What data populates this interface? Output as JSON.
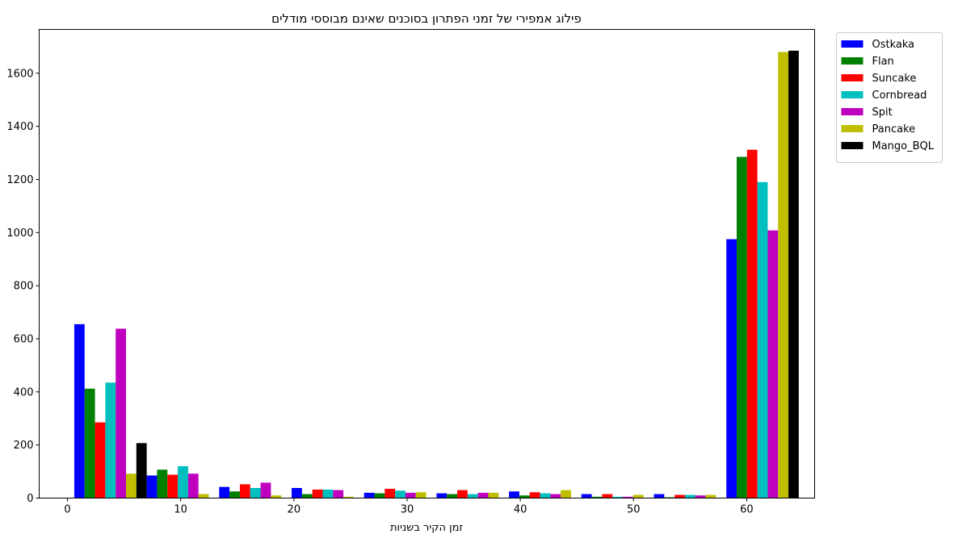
{
  "chart_data": {
    "type": "bar",
    "title": "פילוג אמפירי של זמני הפתרון בסוכנים שאינם מבוססי מודלים",
    "xlabel": "זמן הקיר בשניות",
    "ylabel": "",
    "xlim": [
      -2.5,
      66
    ],
    "ylim": [
      0,
      1765
    ],
    "x_ticks": [
      0,
      10,
      20,
      30,
      40,
      50,
      60
    ],
    "y_ticks": [
      0,
      200,
      400,
      600,
      800,
      1000,
      1200,
      1400,
      1600
    ],
    "bin_edges": [
      0.6,
      7.0,
      13.4,
      19.8,
      26.2,
      32.6,
      39.0,
      45.4,
      51.8,
      58.2,
      64.6
    ],
    "legend_position": "outside-top-right",
    "grid": false,
    "series": [
      {
        "name": "Ostkaka",
        "color": "#0000ff",
        "values": [
          655,
          85,
          42,
          38,
          20,
          18,
          25,
          15,
          15,
          975
        ]
      },
      {
        "name": "Flan",
        "color": "#008000",
        "values": [
          412,
          107,
          25,
          15,
          18,
          15,
          10,
          5,
          3,
          1285
        ]
      },
      {
        "name": "Suncake",
        "color": "#ff0000",
        "values": [
          285,
          88,
          52,
          32,
          35,
          30,
          22,
          15,
          12,
          1312
        ]
      },
      {
        "name": "Cornbread",
        "color": "#00bfbf",
        "values": [
          435,
          120,
          38,
          32,
          28,
          15,
          18,
          5,
          12,
          1190
        ]
      },
      {
        "name": "Spit",
        "color": "#bf00bf",
        "values": [
          638,
          92,
          58,
          30,
          20,
          20,
          15,
          5,
          10,
          1008
        ]
      },
      {
        "name": "Pancake",
        "color": "#bfbf00",
        "values": [
          92,
          15,
          10,
          5,
          22,
          20,
          30,
          12,
          12,
          1680
        ]
      },
      {
        "name": "Mango_BQL",
        "color": "#000000",
        "values": [
          207,
          0,
          0,
          0,
          0,
          0,
          0,
          0,
          0,
          1685
        ]
      }
    ]
  }
}
